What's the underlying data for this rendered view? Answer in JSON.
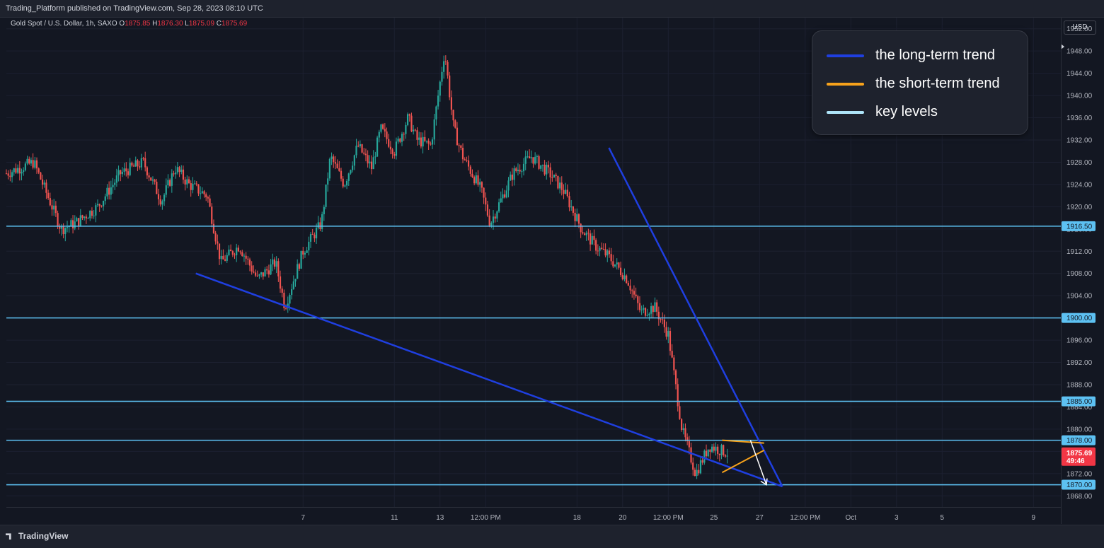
{
  "header": {
    "publisher_line": "Trading_Platform published on TradingView.com, Sep 28, 2023 08:10 UTC"
  },
  "symbol": {
    "name": "Gold Spot / U.S. Dollar, 1h, SAXO",
    "o_label": "O",
    "o": "1875.85",
    "h_label": "H",
    "h": "1876.30",
    "l_label": "L",
    "l": "1875.09",
    "c_label": "C",
    "c": "1875.69"
  },
  "currency_button": "USD",
  "footer": {
    "brand": "TradingView"
  },
  "colors": {
    "up": "#26a69a",
    "down": "#ef5350",
    "long_trend": "#1f3fe0",
    "short_trend": "#f7a21b",
    "key_level": "#5dc1f2",
    "last_price": "#f23645"
  },
  "legend": [
    {
      "label": "the long-term trend",
      "color": "#1f3fe0"
    },
    {
      "label": "the short-term trend",
      "color": "#f7a21b"
    },
    {
      "label": "key levels",
      "color": "#aee4f8"
    }
  ],
  "chart_data": {
    "type": "line",
    "title": "Gold Spot / U.S. Dollar, 1h, SAXO",
    "ylim": [
      1866,
      1954
    ],
    "y_ticks": [
      1868,
      1872,
      1876,
      1880,
      1884,
      1888,
      1892,
      1896,
      1900,
      1904,
      1908,
      1912,
      1916,
      1920,
      1924,
      1928,
      1932,
      1936,
      1940,
      1944,
      1948,
      1952
    ],
    "y_tick_labels": [
      "1868.00",
      "1872.00",
      "1876.00",
      "1880.00",
      "1884.00",
      "1888.00",
      "1892.00",
      "1896.00",
      "1900.00",
      "1904.00",
      "1908.00",
      "1912.00",
      "1916.00",
      "1920.00",
      "1924.00",
      "1928.00",
      "1932.00",
      "1936.00",
      "1940.00",
      "1944.00",
      "1948.00",
      "1952.00"
    ],
    "x_labels": [
      "7",
      "11",
      "13",
      "12:00 PM",
      "18",
      "20",
      "12:00 PM",
      "25",
      "27",
      "12:00 PM",
      "Oct",
      "3",
      "5",
      "9"
    ],
    "x_ticks_day": [
      6.5,
      8.5,
      9.5,
      10.5,
      12.5,
      13.5,
      14.5,
      15.5,
      16.5,
      17.5,
      18.5,
      19.5,
      20.5,
      22.5
    ],
    "x_range_day": [
      0,
      23.1
    ],
    "series": [
      {
        "name": "Gold Spot / U.S. Dollar",
        "x_day": [
          0,
          0.6,
          1.2,
          1.5,
          2.0,
          2.5,
          3.0,
          3.4,
          3.7,
          4.0,
          4.4,
          4.7,
          5.1,
          5.5,
          5.9,
          6.1,
          6.5,
          6.9,
          7.1,
          7.4,
          7.7,
          8.0,
          8.2,
          8.5,
          8.8,
          9.0,
          9.3,
          9.6,
          9.8,
          10.0,
          10.4,
          10.6,
          11.1,
          11.5,
          11.9,
          12.2,
          12.6,
          12.9,
          13.2,
          13.6,
          13.9,
          14.2,
          14.5,
          14.8,
          15.1,
          15.4,
          15.8,
          16.1,
          16.4,
          16.6,
          16.9,
          17.1,
          17.3,
          17.6,
          17.9,
          18.2,
          18.4,
          18.6,
          18.9,
          19.2,
          19.4,
          19.6,
          19.9,
          20.0,
          20.2,
          20.5,
          20.8,
          21.0,
          21.4,
          21.7,
          22.0
        ],
        "values": [
          1926,
          1928,
          1916,
          1917,
          1920,
          1926,
          1928,
          1921,
          1927,
          1924,
          1922,
          1910,
          1913,
          1907,
          1910,
          1902,
          1912,
          1917,
          1929,
          1924,
          1931,
          1927,
          1934,
          1930,
          1936,
          1932,
          1931,
          1948,
          1934,
          1929,
          1923,
          1917,
          1926,
          1929,
          1926,
          1923,
          1916,
          1913,
          1911,
          1907,
          1901,
          1902,
          1897,
          1880,
          1872,
          1877,
          1875.69,
          null,
          null,
          null,
          null,
          null,
          null,
          null,
          null,
          null,
          null,
          null,
          null,
          null,
          null,
          null,
          null,
          null,
          null,
          null,
          null,
          null,
          null,
          null,
          null
        ]
      }
    ],
    "key_levels": [
      1916.5,
      1900.0,
      1885.0,
      1878.0,
      1870.0
    ],
    "key_level_labels": [
      "1916.50",
      "1900.00",
      "1885.00",
      "1878.00",
      "1870.00"
    ],
    "long_term_trendlines": [
      {
        "from": [
          4.15,
          1908
        ],
        "to": [
          17.0,
          1869.7
        ]
      },
      {
        "from": [
          13.2,
          1930.6
        ],
        "to": [
          17.0,
          1869.7
        ]
      }
    ],
    "short_term_pattern": {
      "upper": {
        "from": [
          15.68,
          1878
        ],
        "to": [
          16.6,
          1877.5
        ]
      },
      "lower": {
        "from": [
          15.68,
          1872.2
        ],
        "to": [
          16.6,
          1876.2
        ]
      }
    },
    "projection_arrow": [
      [
        16.3,
        1878
      ],
      [
        16.45,
        1874.6
      ],
      [
        16.45,
        1874.6
      ],
      [
        16.65,
        1870
      ]
    ],
    "last_price": {
      "value": "1875.69",
      "countdown": "49:46"
    },
    "grid": true
  }
}
